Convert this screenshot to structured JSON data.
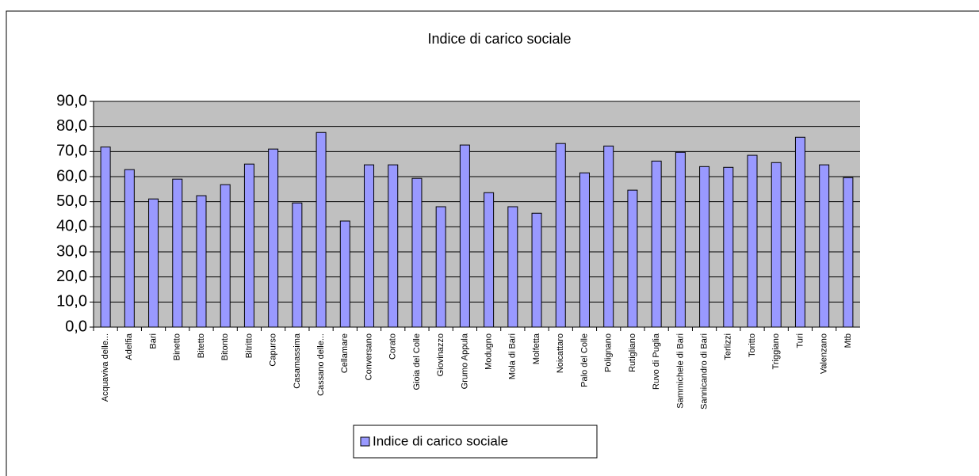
{
  "chart_data": {
    "type": "bar",
    "title": "Indice di carico sociale",
    "categories": [
      "Acquaviva delle...",
      "Adelfia",
      "Bari",
      "Binetto",
      "Bitetto",
      "Bitonto",
      "Bitritto",
      "Capurso",
      "Casamassima",
      "Cassano delle...",
      "Cellamare",
      "Conversano",
      "Corato",
      "Gioia del Colle",
      "Giovinazzo",
      "Grumo Appula",
      "Modugno",
      "Mola di Bari",
      "Molfetta",
      "Noicattaro",
      "Palo del Colle",
      "Polignano",
      "Rutigliano",
      "Ruvo di Puglia",
      "Sammichele di Bari",
      "Sannicandro di Bari",
      "Terlizzi",
      "Toritto",
      "Triggiano",
      "Turi",
      "Valenzano",
      "Mtb"
    ],
    "series": [
      {
        "name": "Indice di carico sociale",
        "color": "#9999ff",
        "values": [
          71.8,
          62.8,
          51.1,
          59.0,
          52.4,
          56.8,
          65.0,
          71.0,
          49.5,
          77.6,
          42.3,
          64.7,
          64.7,
          59.3,
          48.0,
          72.6,
          53.6,
          48.0,
          45.4,
          73.2,
          61.5,
          72.2,
          54.6,
          66.2,
          69.7,
          64.0,
          63.7,
          68.5,
          65.6,
          75.7,
          64.7,
          59.6
        ]
      }
    ],
    "ylim": [
      0,
      90
    ],
    "yticks": [
      {
        "value": 0,
        "label": "0,0"
      },
      {
        "value": 10,
        "label": "10,0"
      },
      {
        "value": 20,
        "label": "20,0"
      },
      {
        "value": 30,
        "label": "30,0"
      },
      {
        "value": 40,
        "label": "40,0"
      },
      {
        "value": 50,
        "label": "50,0"
      },
      {
        "value": 60,
        "label": "60,0"
      },
      {
        "value": 70,
        "label": "70,0"
      },
      {
        "value": 80,
        "label": "80,0"
      },
      {
        "value": 90,
        "label": "90,0"
      }
    ],
    "grid": true,
    "legend": "bottom"
  }
}
